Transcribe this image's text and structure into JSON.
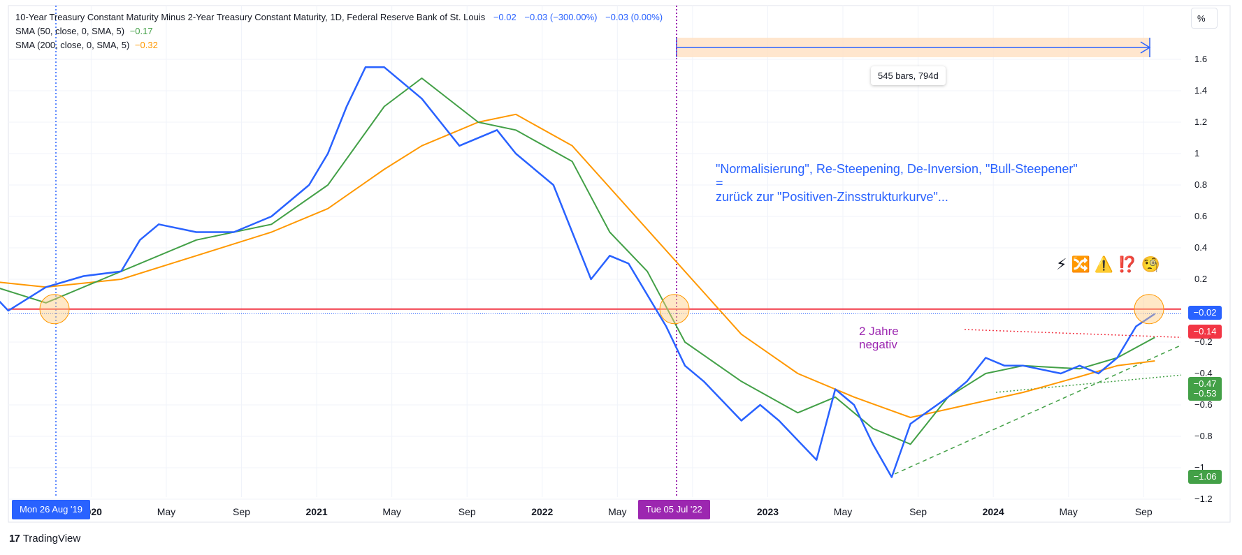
{
  "legend": {
    "title": "10-Year Treasury Constant Maturity Minus 2-Year Treasury Constant Maturity, 1D, Federal Reserve Bank of St. Louis",
    "last": "−0.02",
    "change": "−0.03 (−300.00%)",
    "extra": "−0.03 (0.00%)",
    "sma50_label": "SMA (50, close, 0, SMA, 5)",
    "sma50_value": "−0.17",
    "sma200_label": "SMA (200, close, 0, SMA, 5)",
    "sma200_value": "−0.32"
  },
  "toolbar": {
    "scale_unit": "%"
  },
  "measure": {
    "label": "545 bars, 794d"
  },
  "annotations": {
    "note_line1": "\"Normalisierung\", Re-Steepening, De-Inversion, \"Bull-Steepener\"",
    "note_line2": "=",
    "note_line3": "zurück zur \"Positiven-Zinsstrukturkurve\"...",
    "negative_line1": "2 Jahre",
    "negative_line2": "negativ",
    "emojis": "⚡🔀⚠️⁉️🧐"
  },
  "price_tags": [
    {
      "value": "−0.02",
      "color": "#2962ff"
    },
    {
      "value": "−0.14",
      "color": "#f23645"
    },
    {
      "value": "−0.47",
      "color": "#43a047"
    },
    {
      "value": "−0.53",
      "color": "#43a047"
    },
    {
      "value": "−1.06",
      "color": "#43a047"
    }
  ],
  "date_tags": {
    "left": "Mon 26 Aug '19",
    "middle": "Tue 05 Jul '22"
  },
  "brand": {
    "name": "TradingView"
  },
  "colors": {
    "series": "#2962ff",
    "sma50": "#43a047",
    "sma200": "#ff9800",
    "zero_line": "#f23645",
    "range_fill": "#ffe0c2",
    "date_tag_blue": "#2962ff",
    "date_tag_purple": "#9c27b0"
  },
  "chart_data": {
    "type": "line",
    "title": "10-Year Treasury Constant Maturity Minus 2-Year Treasury Constant Maturity, 1D, Federal Reserve Bank of St. Louis",
    "ylabel": "%",
    "y_ticks": [
      "1.6",
      "1.4",
      "1.2",
      "1",
      "0.8",
      "0.6",
      "0.4",
      "0.2",
      "−0.2",
      "−0.4",
      "−0.6",
      "−0.8",
      "−1",
      "−1.2"
    ],
    "x_ticks": [
      "2020",
      "May",
      "Sep",
      "2021",
      "May",
      "Sep",
      "2022",
      "May",
      "Sep",
      "2023",
      "May",
      "Sep",
      "2024",
      "May",
      "Sep"
    ],
    "ylim": [
      -1.2,
      1.8
    ],
    "grid": true,
    "series": [
      {
        "name": "10-Year Treasury Constant Maturity Minus 2-Year Treasury Constant Maturity",
        "x": [
          "2019-06",
          "2019-08",
          "2019-10",
          "2019-12",
          "2020-02",
          "2020-03",
          "2020-04",
          "2020-06",
          "2020-08",
          "2020-10",
          "2020-12",
          "2021-01",
          "2021-02",
          "2021-03",
          "2021-04",
          "2021-06",
          "2021-08",
          "2021-10",
          "2021-11",
          "2022-01",
          "2022-02",
          "2022-03",
          "2022-04",
          "2022-05",
          "2022-07",
          "2022-08",
          "2022-09",
          "2022-11",
          "2022-12",
          "2023-01",
          "2023-03",
          "2023-04",
          "2023-05",
          "2023-06",
          "2023-07",
          "2023-08",
          "2023-10",
          "2023-11",
          "2023-12",
          "2024-01",
          "2024-02",
          "2024-04",
          "2024-05",
          "2024-06",
          "2024-07",
          "2024-08",
          "2024-09"
        ],
        "y": [
          0.25,
          0.0,
          0.15,
          0.22,
          0.25,
          0.45,
          0.55,
          0.5,
          0.5,
          0.6,
          0.8,
          1.0,
          1.3,
          1.55,
          1.55,
          1.35,
          1.05,
          1.15,
          1.0,
          0.8,
          0.5,
          0.2,
          0.35,
          0.3,
          -0.1,
          -0.35,
          -0.45,
          -0.7,
          -0.6,
          -0.7,
          -0.95,
          -0.5,
          -0.6,
          -0.85,
          -1.06,
          -0.72,
          -0.55,
          -0.45,
          -0.3,
          -0.35,
          -0.35,
          -0.4,
          -0.35,
          -0.4,
          -0.3,
          -0.1,
          -0.02
        ]
      },
      {
        "name": "SMA (50, close, 0, SMA, 5)",
        "x": [
          "2019-06",
          "2019-10",
          "2020-01",
          "2020-06",
          "2020-10",
          "2021-01",
          "2021-04",
          "2021-06",
          "2021-09",
          "2021-11",
          "2022-02",
          "2022-04",
          "2022-06",
          "2022-08",
          "2022-11",
          "2023-02",
          "2023-04",
          "2023-06",
          "2023-08",
          "2023-10",
          "2023-12",
          "2024-02",
          "2024-05",
          "2024-07",
          "2024-09"
        ],
        "y": [
          0.2,
          0.05,
          0.2,
          0.45,
          0.55,
          0.8,
          1.3,
          1.48,
          1.2,
          1.15,
          0.95,
          0.5,
          0.25,
          -0.2,
          -0.45,
          -0.65,
          -0.55,
          -0.75,
          -0.85,
          -0.55,
          -0.4,
          -0.35,
          -0.37,
          -0.3,
          -0.17
        ]
      },
      {
        "name": "SMA (200, close, 0, SMA, 5)",
        "x": [
          "2019-06",
          "2019-10",
          "2020-02",
          "2020-06",
          "2020-10",
          "2021-01",
          "2021-04",
          "2021-06",
          "2021-09",
          "2021-11",
          "2022-02",
          "2022-05",
          "2022-08",
          "2022-11",
          "2023-02",
          "2023-05",
          "2023-08",
          "2023-11",
          "2024-02",
          "2024-05",
          "2024-07",
          "2024-09"
        ],
        "y": [
          0.2,
          0.15,
          0.2,
          0.35,
          0.5,
          0.65,
          0.9,
          1.05,
          1.2,
          1.25,
          1.05,
          0.65,
          0.25,
          -0.15,
          -0.4,
          -0.55,
          -0.68,
          -0.6,
          -0.52,
          -0.42,
          -0.35,
          -0.32
        ]
      }
    ]
  }
}
